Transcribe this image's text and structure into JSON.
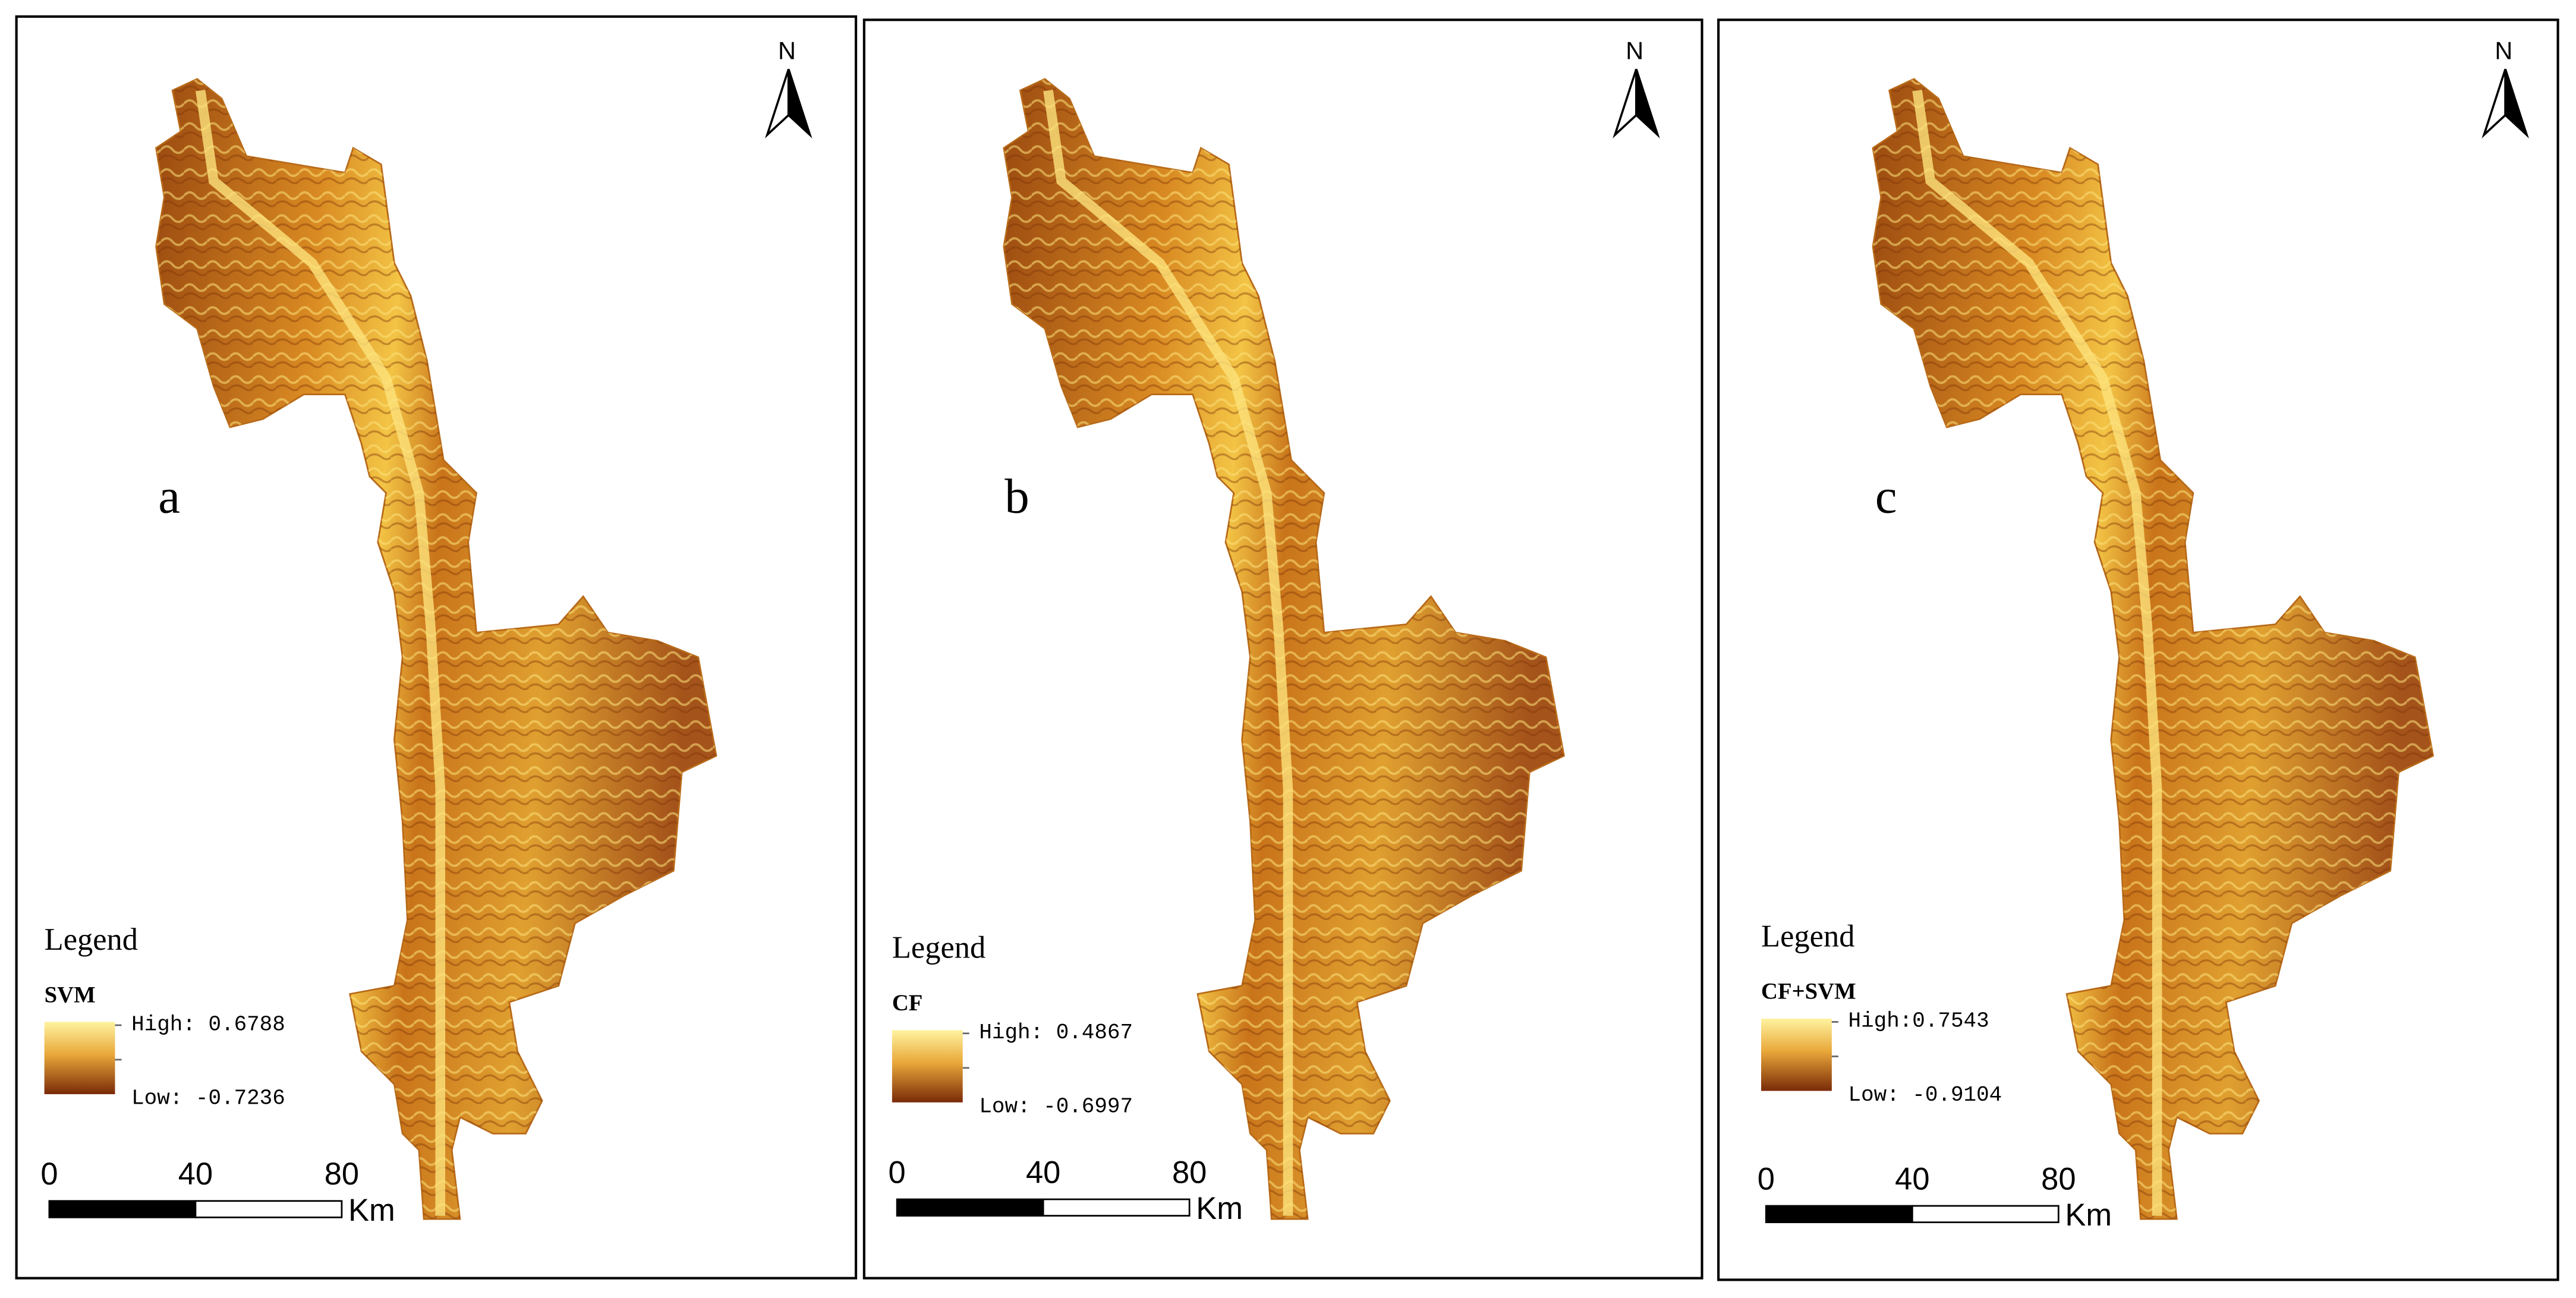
{
  "panels": [
    {
      "label": "a",
      "north": "N",
      "legend_title": "Legend",
      "layer": "SVM",
      "high": "High: 0.6788",
      "low": "Low: -0.7236",
      "scale_ticks": [
        0,
        40,
        80
      ],
      "scale_unit": "Km"
    },
    {
      "label": "b",
      "north": "N",
      "legend_title": "Legend",
      "layer": "CF",
      "high": "High: 0.4867",
      "low": "Low: -0.6997",
      "scale_ticks": [
        0,
        40,
        80
      ],
      "scale_unit": "Km"
    },
    {
      "label": "c",
      "north": "N",
      "legend_title": "Legend",
      "layer": "CF+SVM",
      "high": "High:0.7543",
      "low": "Low: -0.9104",
      "scale_ticks": [
        0,
        40,
        80
      ],
      "scale_unit": "Km"
    }
  ]
}
